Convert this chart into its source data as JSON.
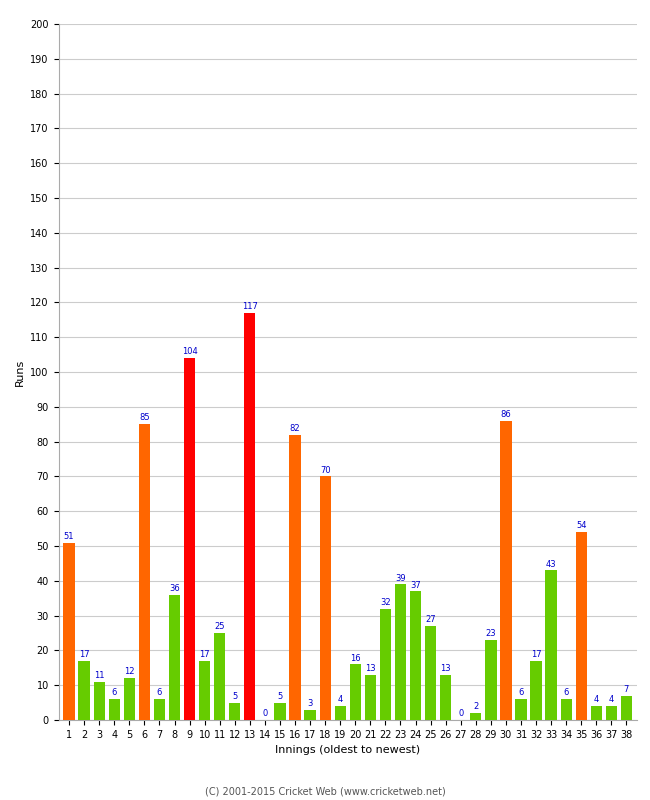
{
  "xlabel": "Innings (oldest to newest)",
  "ylabel": "Runs",
  "footer": "(C) 2001-2015 Cricket Web (www.cricketweb.net)",
  "ylim": [
    0,
    200
  ],
  "yticks": [
    0,
    10,
    20,
    30,
    40,
    50,
    60,
    70,
    80,
    90,
    100,
    110,
    120,
    130,
    140,
    150,
    160,
    170,
    180,
    190,
    200
  ],
  "innings": [
    1,
    2,
    3,
    4,
    5,
    6,
    7,
    8,
    9,
    10,
    11,
    12,
    13,
    14,
    15,
    16,
    17,
    18,
    19,
    20,
    21,
    22,
    23,
    24,
    25,
    26,
    27,
    28,
    29,
    30,
    31,
    32,
    33,
    34,
    35,
    36,
    37,
    38
  ],
  "values": [
    51,
    17,
    11,
    6,
    12,
    85,
    6,
    36,
    104,
    17,
    25,
    5,
    117,
    0,
    5,
    82,
    3,
    70,
    4,
    16,
    13,
    32,
    39,
    37,
    27,
    13,
    0,
    2,
    23,
    86,
    6,
    17,
    43,
    6,
    54,
    4,
    4,
    7
  ],
  "colors": [
    "#ff6600",
    "#66cc00",
    "#66cc00",
    "#66cc00",
    "#66cc00",
    "#ff6600",
    "#66cc00",
    "#66cc00",
    "#ff0000",
    "#66cc00",
    "#66cc00",
    "#66cc00",
    "#ff0000",
    "#66cc00",
    "#66cc00",
    "#ff6600",
    "#66cc00",
    "#ff6600",
    "#66cc00",
    "#66cc00",
    "#66cc00",
    "#66cc00",
    "#66cc00",
    "#66cc00",
    "#66cc00",
    "#66cc00",
    "#66cc00",
    "#66cc00",
    "#66cc00",
    "#ff6600",
    "#66cc00",
    "#66cc00",
    "#66cc00",
    "#66cc00",
    "#ff6600",
    "#66cc00",
    "#66cc00",
    "#66cc00"
  ],
  "value_color": "#0000cc",
  "value_fontsize": 6,
  "bg_color": "#ffffff",
  "grid_color": "#cccccc",
  "bar_width": 0.75,
  "axis_label_fontsize": 8,
  "tick_fontsize": 7
}
